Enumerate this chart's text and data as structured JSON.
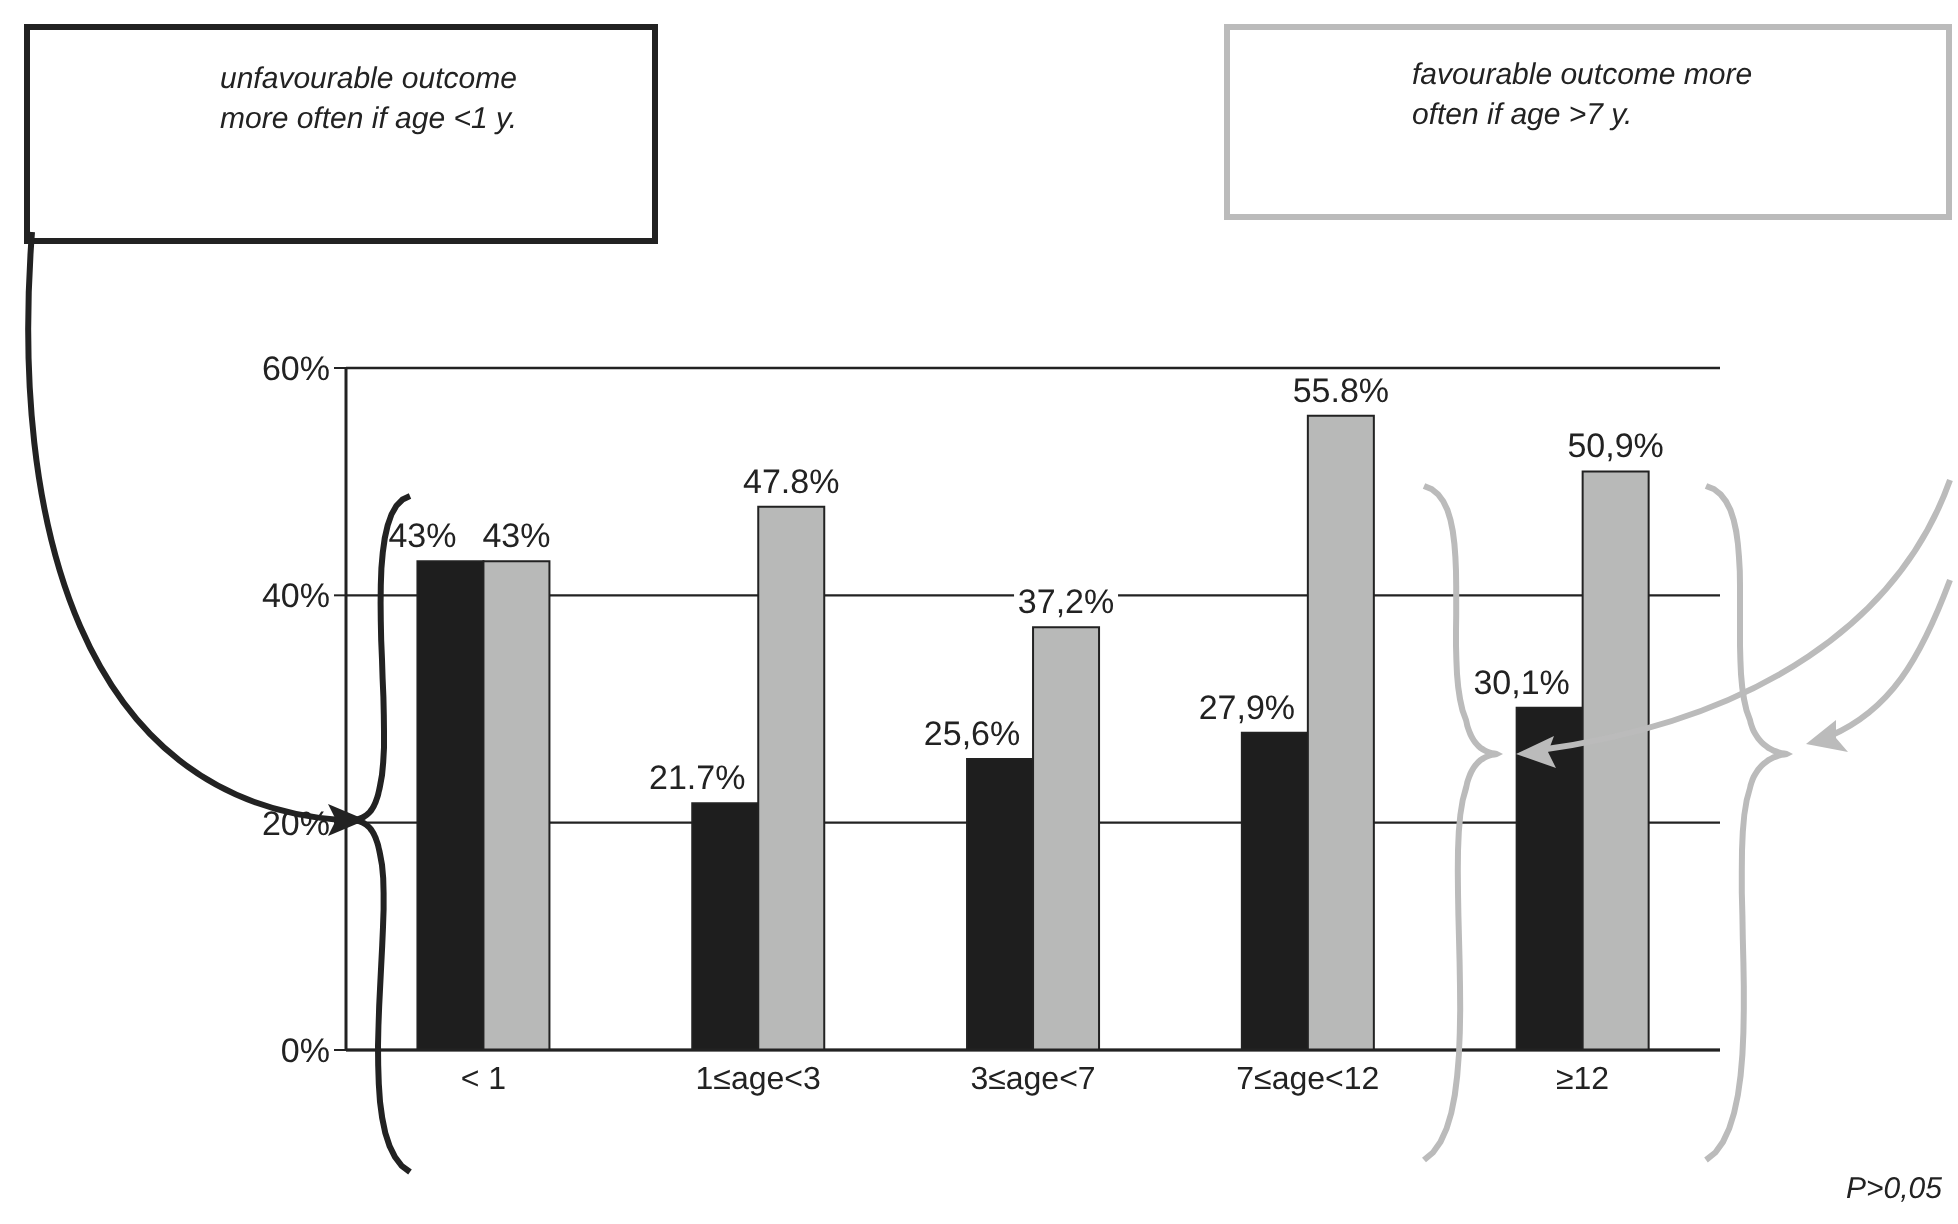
{
  "chart_data": {
    "type": "bar",
    "categories": [
      "< 1",
      "1≤age<3",
      "3≤age<7",
      "7≤age<12",
      "≥12"
    ],
    "series": [
      {
        "color": "#1e1e1e",
        "values": [
          43,
          21.7,
          25.6,
          27.9,
          30.1
        ],
        "value_labels": [
          "43%",
          "21.7%",
          "25,6%",
          "27,9%",
          "30,1%"
        ]
      },
      {
        "color": "#b8b9b8",
        "values": [
          43,
          47.8,
          37.2,
          55.8,
          50.9
        ],
        "value_labels": [
          "43%",
          "47.8%",
          "37,2%",
          "55.8%",
          "50,9%"
        ]
      }
    ],
    "ylim": [
      0,
      60
    ],
    "yticks": [
      {
        "value": 0,
        "label": "0%"
      },
      {
        "value": 20,
        "label": "20%"
      },
      {
        "value": 40,
        "label": "40%"
      },
      {
        "value": 60,
        "label": "60%"
      }
    ],
    "grid": "y",
    "legend": false,
    "annotations": [
      "unfavourable outcome more often if age <1 y.",
      "favourable outcome more often if age >7 y.",
      "P>0,05"
    ]
  }
}
